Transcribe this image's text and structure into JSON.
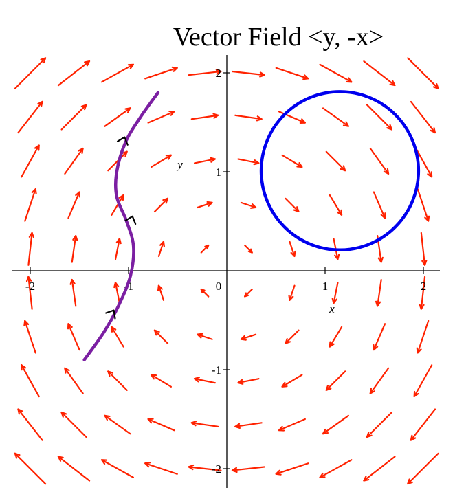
{
  "chart_data": {
    "type": "vector_field",
    "title": "Vector Field <y, -x>",
    "xlabel": "x",
    "ylabel": "y",
    "xlim": [
      -2.1,
      2.2
    ],
    "ylim": [
      -2.2,
      2.2
    ],
    "x_ticks": [
      {
        "value": -2,
        "label": "-2"
      },
      {
        "value": -1,
        "label": "-1"
      },
      {
        "value": 0,
        "label": "0"
      },
      {
        "value": 1,
        "label": "1"
      },
      {
        "value": 2,
        "label": "2"
      }
    ],
    "y_ticks": [
      {
        "value": -2,
        "label": "-2"
      },
      {
        "value": -1,
        "label": "-1"
      },
      {
        "value": 1,
        "label": "1"
      },
      {
        "value": 2,
        "label": "2"
      }
    ],
    "field": {
      "components": [
        "y",
        "-x"
      ],
      "grid_x_start": -2.0,
      "grid_x_step": 0.444,
      "grid_x_count": 10,
      "grid_y_start": -2.0,
      "grid_y_step": 0.444,
      "grid_y_count": 10,
      "arrow_scale": 0.19,
      "color": "#ff2200"
    },
    "curve": {
      "color": "#7b1fa2",
      "points": [
        [
          -1.45,
          -0.9
        ],
        [
          -1.25,
          -0.62
        ],
        [
          -1.1,
          -0.35
        ],
        [
          -0.98,
          -0.05
        ],
        [
          -0.95,
          0.25
        ],
        [
          -1.02,
          0.5
        ],
        [
          -1.12,
          0.75
        ],
        [
          -1.12,
          1.0
        ],
        [
          -1.03,
          1.3
        ],
        [
          -0.88,
          1.55
        ],
        [
          -0.7,
          1.8
        ]
      ],
      "arrows": [
        {
          "x": -1.15,
          "y": -0.4,
          "dx": 0.3,
          "dy": 0.5
        },
        {
          "x": -0.96,
          "y": 0.55,
          "dx": 0.2,
          "dy": 0.6
        },
        {
          "x": -1.04,
          "y": 1.35,
          "dx": 0.2,
          "dy": 0.6
        }
      ]
    },
    "circle": {
      "cx": 1.15,
      "cy": 1.01,
      "r": 0.8,
      "color": "#0000ee"
    }
  }
}
